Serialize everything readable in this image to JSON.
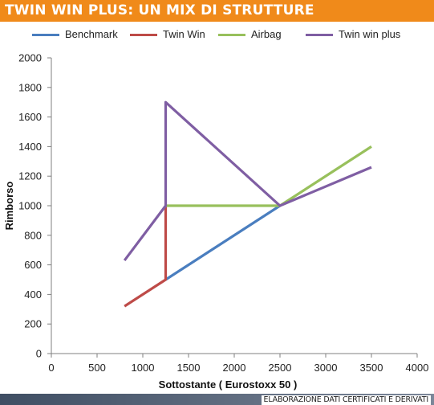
{
  "header": {
    "title": "TWIN WIN PLUS: UN MIX DI STRUTTURE"
  },
  "footer": {
    "credit": "ELABORAZIONE DATI CERTIFICATI E DERIVATI"
  },
  "chart_data": {
    "type": "line",
    "title": "TWIN WIN PLUS: UN MIX DI STRUTTURE",
    "xlabel": "Sottostante ( Eurostoxx 50 )",
    "ylabel": "Rimborso",
    "xlim": [
      0,
      4000
    ],
    "ylim": [
      0,
      2000
    ],
    "xticks": [
      0,
      500,
      1000,
      1500,
      2000,
      2500,
      3000,
      3500,
      4000
    ],
    "yticks": [
      0,
      200,
      400,
      600,
      800,
      1000,
      1200,
      1400,
      1600,
      1800,
      2000
    ],
    "grid": false,
    "legend_position": "top",
    "series": [
      {
        "name": "Benchmark",
        "color": "#4a7ebf",
        "points": [
          [
            1250,
            500
          ],
          [
            2500,
            1000
          ]
        ]
      },
      {
        "name": "Twin Win",
        "color": "#be4b48",
        "points": [
          [
            800,
            320
          ],
          [
            1250,
            500
          ],
          [
            1250,
            1000
          ]
        ]
      },
      {
        "name": "Airbag",
        "color": "#98c05c",
        "points": [
          [
            1250,
            1000
          ],
          [
            2500,
            1000
          ],
          [
            3500,
            1400
          ]
        ]
      },
      {
        "name": "Twin win plus",
        "color": "#7f5ea3",
        "points": [
          [
            800,
            630
          ],
          [
            1250,
            1000
          ],
          [
            1250,
            1700
          ],
          [
            2500,
            1000
          ],
          [
            3500,
            1260
          ]
        ]
      }
    ]
  }
}
